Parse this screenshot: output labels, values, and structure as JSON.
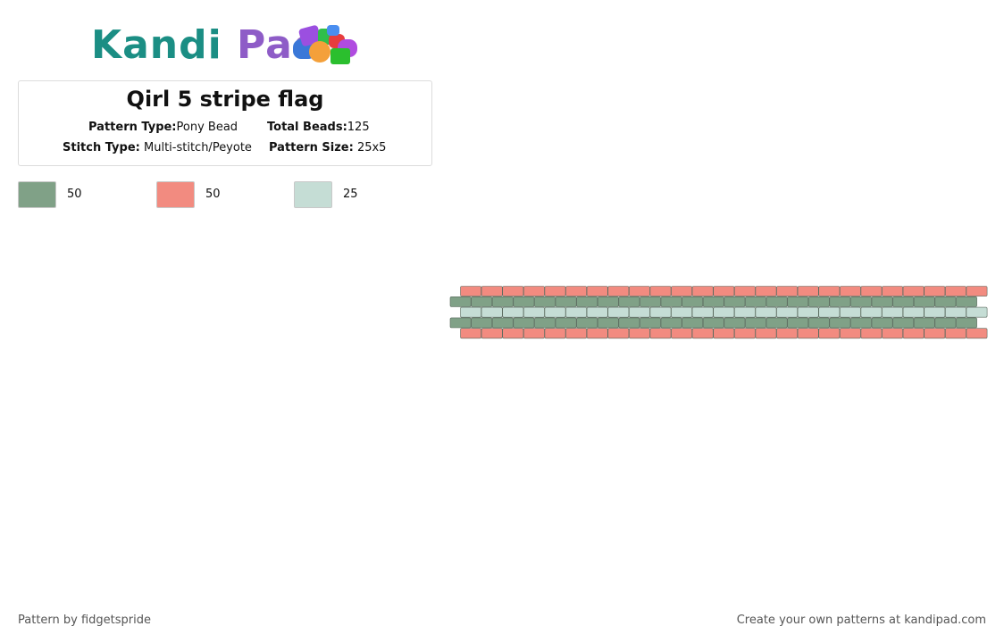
{
  "logo": {
    "text_k": "Kandi",
    "text_p": "Pad"
  },
  "pattern_info": {
    "title": "Qirl 5 stripe flag",
    "pattern_type_label": "Pattern Type:",
    "pattern_type": "Pony Bead",
    "total_beads_label": "Total Beads:",
    "total_beads": "125",
    "stitch_type_label": "Stitch Type:",
    "stitch_type": "Multi-stitch/Peyote",
    "pattern_size_label": "Pattern Size:",
    "pattern_size": "25x5"
  },
  "legend": [
    {
      "color": "#80a187",
      "count": "50"
    },
    {
      "color": "#f28b80",
      "count": "50"
    },
    {
      "color": "#c5ddd5",
      "count": "25"
    }
  ],
  "bead_rows": [
    {
      "color": "#f28b80",
      "offset": "right"
    },
    {
      "color": "#80a187",
      "offset": "left"
    },
    {
      "color": "#c5ddd5",
      "offset": "right"
    },
    {
      "color": "#80a187",
      "offset": "left"
    },
    {
      "color": "#f28b80",
      "offset": "right"
    }
  ],
  "beads_per_row": 25,
  "footer": {
    "left": "Pattern by fidgetspride",
    "right": "Create your own patterns at kandipad.com"
  }
}
